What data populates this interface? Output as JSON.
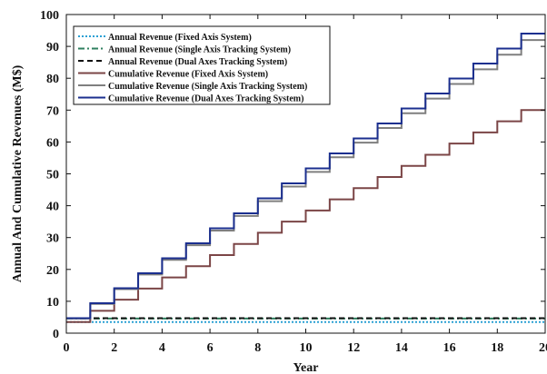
{
  "chart_data": {
    "type": "line",
    "title": "",
    "xlabel": "Year",
    "ylabel": "Annual And Cumulative Revenues (M$)",
    "xlim": [
      0,
      20
    ],
    "ylim": [
      0,
      100
    ],
    "xticks": [
      0,
      2,
      4,
      6,
      8,
      10,
      12,
      14,
      16,
      18,
      20
    ],
    "yticks": [
      0,
      10,
      20,
      30,
      40,
      50,
      60,
      70,
      80,
      90,
      100
    ],
    "grid": false,
    "legend_position": "top-left",
    "series": [
      {
        "name": "Annual Revenue (Fixed Axis System)",
        "color": "#2aa0d4",
        "dash": "dotted",
        "step": true,
        "x": [
          0,
          1,
          2,
          3,
          4,
          5,
          6,
          7,
          8,
          9,
          10,
          11,
          12,
          13,
          14,
          15,
          16,
          17,
          18,
          19,
          20
        ],
        "y": [
          3.5,
          3.5,
          3.5,
          3.5,
          3.5,
          3.5,
          3.5,
          3.5,
          3.5,
          3.5,
          3.5,
          3.5,
          3.5,
          3.5,
          3.5,
          3.5,
          3.5,
          3.5,
          3.5,
          3.5,
          3.5
        ]
      },
      {
        "name": "Annual Revenue (Single Axis Tracking System)",
        "color": "#2f7f5f",
        "dash": "dashdot",
        "step": true,
        "x": [
          0,
          1,
          2,
          3,
          4,
          5,
          6,
          7,
          8,
          9,
          10,
          11,
          12,
          13,
          14,
          15,
          16,
          17,
          18,
          19,
          20
        ],
        "y": [
          4.6,
          4.6,
          4.6,
          4.6,
          4.6,
          4.6,
          4.6,
          4.6,
          4.6,
          4.6,
          4.6,
          4.6,
          4.6,
          4.6,
          4.6,
          4.6,
          4.6,
          4.6,
          4.6,
          4.6,
          4.6
        ]
      },
      {
        "name": "Annual Revenue (Dual Axes Tracking System)",
        "color": "#111111",
        "dash": "dashed",
        "step": true,
        "x": [
          0,
          1,
          2,
          3,
          4,
          5,
          6,
          7,
          8,
          9,
          10,
          11,
          12,
          13,
          14,
          15,
          16,
          17,
          18,
          19,
          20
        ],
        "y": [
          4.7,
          4.7,
          4.7,
          4.7,
          4.7,
          4.7,
          4.7,
          4.7,
          4.7,
          4.7,
          4.7,
          4.7,
          4.7,
          4.7,
          4.7,
          4.7,
          4.7,
          4.7,
          4.7,
          4.7,
          4.7
        ]
      },
      {
        "name": "Cumulative Revenue (Fixed Axis System)",
        "color": "#7b4546",
        "dash": "solid",
        "step": true,
        "x": [
          0,
          1,
          2,
          3,
          4,
          5,
          6,
          7,
          8,
          9,
          10,
          11,
          12,
          13,
          14,
          15,
          16,
          17,
          18,
          19,
          20
        ],
        "y": [
          3.5,
          7.0,
          10.5,
          14.0,
          17.5,
          21.0,
          24.5,
          28.0,
          31.5,
          35.0,
          38.5,
          42.0,
          45.5,
          49.0,
          52.5,
          56.0,
          59.5,
          63.0,
          66.5,
          70.0,
          70.0
        ]
      },
      {
        "name": "Cumulative Revenue (Single Axis Tracking System)",
        "color": "#7f7f7f",
        "dash": "solid",
        "step": true,
        "x": [
          0,
          1,
          2,
          3,
          4,
          5,
          6,
          7,
          8,
          9,
          10,
          11,
          12,
          13,
          14,
          15,
          16,
          17,
          18,
          19,
          20
        ],
        "y": [
          4.6,
          9.2,
          13.8,
          18.4,
          23.0,
          27.6,
          32.2,
          36.8,
          41.4,
          46.0,
          50.6,
          55.2,
          59.8,
          64.4,
          69.0,
          73.6,
          78.2,
          82.8,
          87.4,
          92.0,
          92.0
        ]
      },
      {
        "name": "Cumulative Revenue (Dual Axes Tracking System)",
        "color": "#1b2f8f",
        "dash": "solid",
        "step": true,
        "x": [
          0,
          1,
          2,
          3,
          4,
          5,
          6,
          7,
          8,
          9,
          10,
          11,
          12,
          13,
          14,
          15,
          16,
          17,
          18,
          19,
          20
        ],
        "y": [
          4.7,
          9.4,
          14.1,
          18.8,
          23.5,
          28.2,
          32.9,
          37.6,
          42.3,
          47.0,
          51.7,
          56.4,
          61.1,
          65.8,
          70.5,
          75.2,
          79.9,
          84.6,
          89.3,
          94.0,
          94.0
        ]
      }
    ]
  }
}
